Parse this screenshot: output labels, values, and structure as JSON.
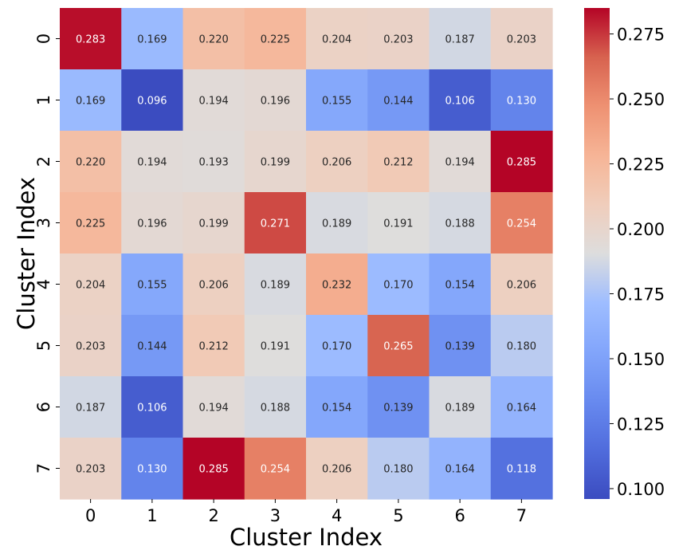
{
  "chart_data": {
    "type": "heatmap",
    "title": "",
    "xlabel": "Cluster Index",
    "ylabel": "Cluster Index",
    "x_categories": [
      "0",
      "1",
      "2",
      "3",
      "4",
      "5",
      "6",
      "7"
    ],
    "y_categories": [
      "0",
      "1",
      "2",
      "3",
      "4",
      "5",
      "6",
      "7"
    ],
    "values": [
      [
        0.283,
        0.169,
        0.22,
        0.225,
        0.204,
        0.203,
        0.187,
        0.203
      ],
      [
        0.169,
        0.096,
        0.194,
        0.196,
        0.155,
        0.144,
        0.106,
        0.13
      ],
      [
        0.22,
        0.194,
        0.193,
        0.199,
        0.206,
        0.212,
        0.194,
        0.285
      ],
      [
        0.225,
        0.196,
        0.199,
        0.271,
        0.189,
        0.191,
        0.188,
        0.254
      ],
      [
        0.204,
        0.155,
        0.206,
        0.189,
        0.232,
        0.17,
        0.154,
        0.206
      ],
      [
        0.203,
        0.144,
        0.212,
        0.191,
        0.17,
        0.265,
        0.139,
        0.18
      ],
      [
        0.187,
        0.106,
        0.194,
        0.188,
        0.154,
        0.139,
        0.189,
        0.164
      ],
      [
        0.203,
        0.13,
        0.285,
        0.254,
        0.206,
        0.18,
        0.164,
        0.118
      ]
    ],
    "colormap": "coolwarm",
    "vmin": 0.096,
    "vmax": 0.285,
    "colorbar_ticks": [
      "0.100",
      "0.125",
      "0.150",
      "0.175",
      "0.200",
      "0.225",
      "0.250",
      "0.275"
    ],
    "annotation_format": "3 decimals",
    "colors": {
      "low": "#3b4cc0",
      "mid": "#dddddd",
      "high": "#b40426",
      "text_dark": "#262626",
      "text_light": "#ffffff"
    }
  }
}
